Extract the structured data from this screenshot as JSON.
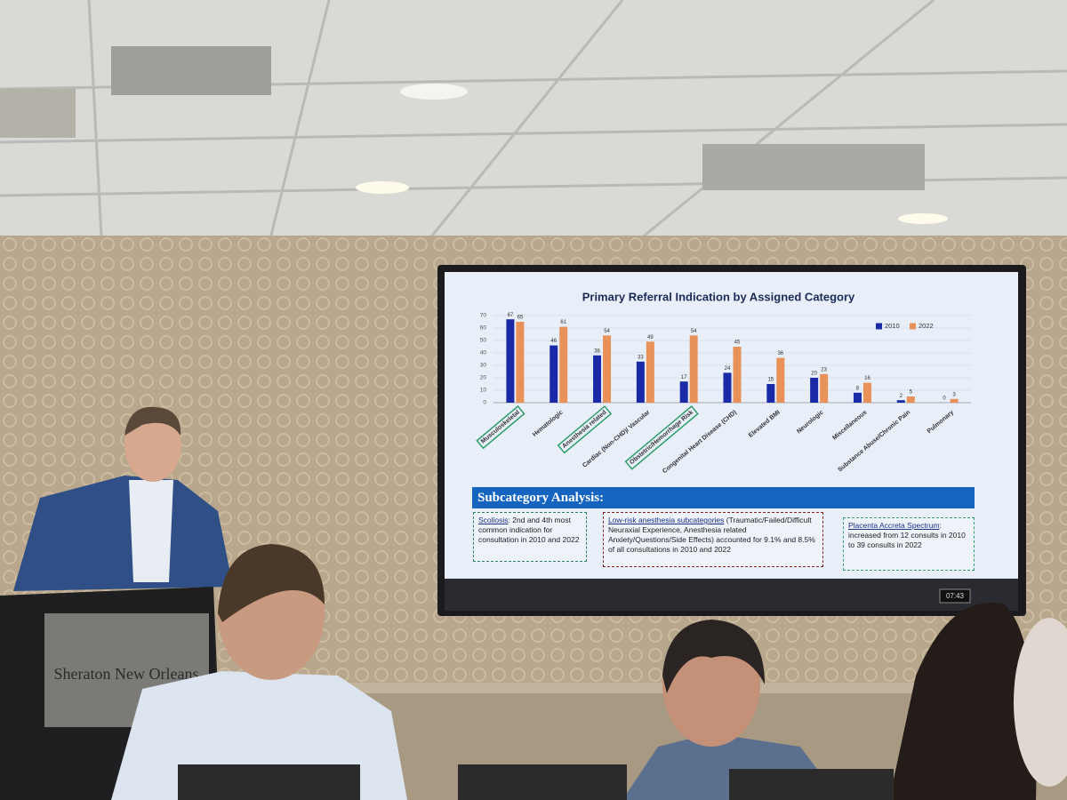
{
  "chart_data": {
    "type": "bar",
    "title": "Primary Referral Indication by Assigned Category",
    "categories": [
      "Musculoskeletal",
      "Hematologic",
      "Anesthesia related",
      "Cardiac (Non-CHD)/ Vascular",
      "Obstetric/Hemorrhage Risk",
      "Congenital Heart Disease (CHD)",
      "Elevated BMI",
      "Neurologic",
      "Miscellaneous",
      "Substance Abuse/Chronic Pain",
      "Pulmonary"
    ],
    "highlight": [
      true,
      false,
      true,
      false,
      true,
      false,
      false,
      false,
      false,
      false,
      false
    ],
    "series": [
      {
        "name": "2010",
        "color": "#1a2aa6",
        "values": [
          67,
          46,
          38,
          33,
          17,
          24,
          15,
          20,
          8,
          2,
          0
        ]
      },
      {
        "name": "2022",
        "color": "#e8925a",
        "values": [
          65,
          61,
          54,
          49,
          54,
          45,
          36,
          23,
          16,
          5,
          3
        ]
      }
    ],
    "ylim": [
      0,
      70
    ],
    "yticks": [
      0,
      10,
      20,
      30,
      40,
      50,
      60,
      70
    ],
    "grid": true,
    "legend": "top-right"
  },
  "subcategory": {
    "title": "Subcategory Analysis:",
    "boxes": [
      {
        "heading": "Scoliosis",
        "text": ": 2nd and 4th most common indication for consultation in 2010 and 2022",
        "color": "#2e7d5b"
      },
      {
        "heading": "Low-risk anesthesia subcategories",
        "text": " (Traumatic/Failed/Difficult Neuraxial Experience, Anesthesia related Anxiety/Questions/Side Effects) accounted for 9.1% and 8.5% of all consultations in 2010 and 2022",
        "color": "#8a2020"
      },
      {
        "heading": "Placenta Accreta Spectrum",
        "text": ": increased from 12 consults in 2010 to 39 consults in 2022",
        "color": "#2e9d6b"
      }
    ]
  },
  "scene": {
    "podium": "Sheraton New Orleans",
    "clock": "07:43"
  }
}
